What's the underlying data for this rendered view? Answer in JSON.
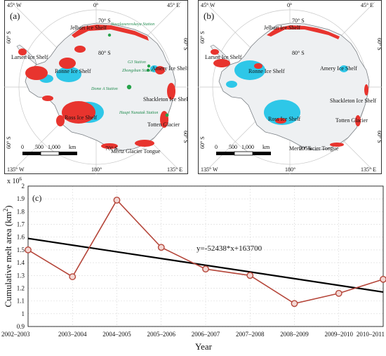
{
  "maps": [
    {
      "panel_label": "(a)",
      "coords": {
        "left_lon": "45° W",
        "top_lon": "0°",
        "right_lon": "45° E",
        "bottom_left_lon": "135° W",
        "bottom_lon": "180°",
        "bottom_right_lon": "135° E",
        "lat_70": "70° S",
        "lat_80": "80° S",
        "left_lat": "60° S",
        "right_lat": "60° S",
        "left_lat_bottom": "60° S",
        "right_lat_bottom": "60° S"
      },
      "labels": {
        "jelbart": "Jelbart Ice Shelf",
        "larsen": "Larsen Ice Shelf",
        "ronne": "Ronne Ice Shelf",
        "amery": "Amery Ice Shelf",
        "shackleton": "Shackleton Ice Shelf",
        "ross": "Ross Ice Shelf",
        "totten": "Totten Glacier",
        "mertz": "Mertz Glacier Tongue"
      },
      "stations": {
        "novolazarevskaya": "Novolazarevskaya Station",
        "g3": "G3 Station",
        "zhongshan": "Zhongshan Station",
        "dome_a": "Dome A Station",
        "haupt_nunatak": "Haupt Nunatak Station"
      },
      "scale": {
        "ticks": [
          "0",
          "500",
          "1,000"
        ],
        "unit": "km"
      }
    },
    {
      "panel_label": "(b)",
      "coords": {
        "left_lon": "45° W",
        "top_lon": "0°",
        "right_lon": "45° E",
        "bottom_left_lon": "135° W",
        "bottom_lon": "180°",
        "bottom_right_lon": "135° E",
        "lat_70": "70° S",
        "lat_80": "80° S",
        "left_lat": "60° S",
        "right_lat": "60° S",
        "left_lat_bottom": "60° S",
        "right_lat_bottom": "60° S"
      },
      "labels": {
        "jelbart": "Jelbart Ice Shelf",
        "larsen": "Larsen Ice Shelf",
        "ronne": "Ronne Ice Shelf",
        "amery": "Amery Ice Shelf",
        "shackleton": "Shackleton Ice Shelf",
        "ross": "Ross Ice Shelf",
        "totten": "Totten Glacier",
        "mertz": "Mertz Glacier Tongue"
      },
      "scale": {
        "ticks": [
          "0",
          "500",
          "1,000"
        ],
        "unit": "km"
      }
    }
  ],
  "colors": {
    "melt": "#e8342e",
    "ice_shelf": "#2ec7e8",
    "land": "#eef0f2",
    "series": "#b5463a",
    "trend": "#000000"
  },
  "chart_data": {
    "type": "line",
    "panel_label": "(c)",
    "categories": [
      "2002–2003",
      "2003–2004",
      "2004–2005",
      "2005–2006",
      "2006–2007",
      "2007–2008",
      "2008–2009",
      "2009–2010",
      "2010–2011"
    ],
    "series": [
      {
        "values": [
          1.5,
          1.29,
          1.89,
          1.52,
          1.35,
          1.3,
          1.08,
          1.16,
          1.27
        ]
      }
    ],
    "trendline": {
      "equation": "y=-52438*x+163700",
      "start": 1.59,
      "end": 1.17
    },
    "multiplier_label": "x 10",
    "multiplier_exp": "6",
    "ylabel_main": "Cumulative melt area (km",
    "ylabel_sup": "2",
    "ylabel_end": ")",
    "xlabel": "Year",
    "ylim": [
      0.9,
      2.0
    ],
    "yticks": [
      0.9,
      1.0,
      1.1,
      1.2,
      1.3,
      1.4,
      1.5,
      1.6,
      1.7,
      1.8,
      1.9,
      2.0
    ],
    "ytick_labels": [
      "0.9",
      "1",
      "1.1",
      "1.2",
      "1.3",
      "1.4",
      "1.5",
      "1.6",
      "1.7",
      "1.8",
      "1.9",
      "2"
    ],
    "grid": true
  }
}
